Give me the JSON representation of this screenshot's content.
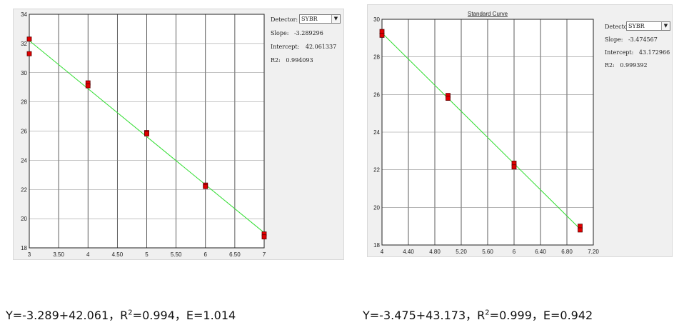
{
  "charts": [
    {
      "chart_data": {
        "type": "scatter",
        "title": "",
        "xlabel": "",
        "ylabel": "",
        "xlim": [
          3,
          7
        ],
        "ylim": [
          18,
          34
        ],
        "xticks": [
          "3",
          "3.50",
          "4",
          "4.50",
          "5",
          "5.50",
          "6",
          "6.50",
          "7"
        ],
        "yticks": [
          "18",
          "20",
          "22",
          "24",
          "26",
          "28",
          "30",
          "32",
          "34"
        ],
        "xtick_values": [
          3,
          3.5,
          4,
          4.5,
          5,
          5.5,
          6,
          6.5,
          7
        ],
        "ytick_values": [
          18,
          20,
          22,
          24,
          26,
          28,
          30,
          32,
          34
        ],
        "grid": true,
        "points": [
          {
            "x": 3,
            "y": 32.3
          },
          {
            "x": 3,
            "y": 31.3
          },
          {
            "x": 4,
            "y": 29.3
          },
          {
            "x": 4,
            "y": 29.1
          },
          {
            "x": 5,
            "y": 25.9
          },
          {
            "x": 5,
            "y": 25.8
          },
          {
            "x": 6,
            "y": 22.3
          },
          {
            "x": 6,
            "y": 22.2
          },
          {
            "x": 7,
            "y": 18.95
          },
          {
            "x": 7,
            "y": 18.75
          }
        ],
        "fit_line": {
          "slope": -3.289296,
          "intercept": 42.061337
        },
        "point_color": "#e00000",
        "line_color": "#33dd33"
      },
      "detector_label": "Detector:",
      "detector_value": "SYBR",
      "slope_label": "Slope:",
      "slope_value": "-3.289296",
      "intercept_label": "Intercept:",
      "intercept_value": "42.061337",
      "r2_label": "R2:",
      "r2_value": "0.994093"
    },
    {
      "chart_data": {
        "type": "scatter",
        "title": "Standard Curve",
        "xlabel": "",
        "ylabel": "",
        "xlim": [
          4,
          7.2
        ],
        "ylim": [
          18,
          30
        ],
        "xticks": [
          "4",
          "4.40",
          "4.80",
          "5.20",
          "5.60",
          "6",
          "6.40",
          "6.80",
          "7.20"
        ],
        "yticks": [
          "18",
          "20",
          "22",
          "24",
          "26",
          "28",
          "30"
        ],
        "xtick_values": [
          4,
          4.4,
          4.8,
          5.2,
          5.6,
          6,
          6.4,
          6.8,
          7.2
        ],
        "ytick_values": [
          18,
          20,
          22,
          24,
          26,
          28,
          30
        ],
        "grid": true,
        "points": [
          {
            "x": 4,
            "y": 29.35
          },
          {
            "x": 4,
            "y": 29.15
          },
          {
            "x": 5,
            "y": 25.95
          },
          {
            "x": 5,
            "y": 25.8
          },
          {
            "x": 6,
            "y": 22.35
          },
          {
            "x": 6,
            "y": 22.15
          },
          {
            "x": 7,
            "y": 19.0
          },
          {
            "x": 7,
            "y": 18.8
          }
        ],
        "fit_line": {
          "slope": -3.474567,
          "intercept": 43.172966
        },
        "point_color": "#e00000",
        "line_color": "#33dd33"
      },
      "detector_label": "Detector:",
      "detector_value": "SYBR",
      "slope_label": "Slope:",
      "slope_value": "-3.474567",
      "intercept_label": "Intercept:",
      "intercept_value": "43.172966",
      "r2_label": "R2:",
      "r2_value": "0.999392"
    }
  ],
  "equations": [
    {
      "prefix": "Y=-3.289+42.061，R",
      "sup": "2",
      "suffix": "=0.994，E=1.014"
    },
    {
      "prefix": "Y=-3.475+43.173，R",
      "sup": "2",
      "suffix": "=0.999，E=0.942"
    }
  ]
}
